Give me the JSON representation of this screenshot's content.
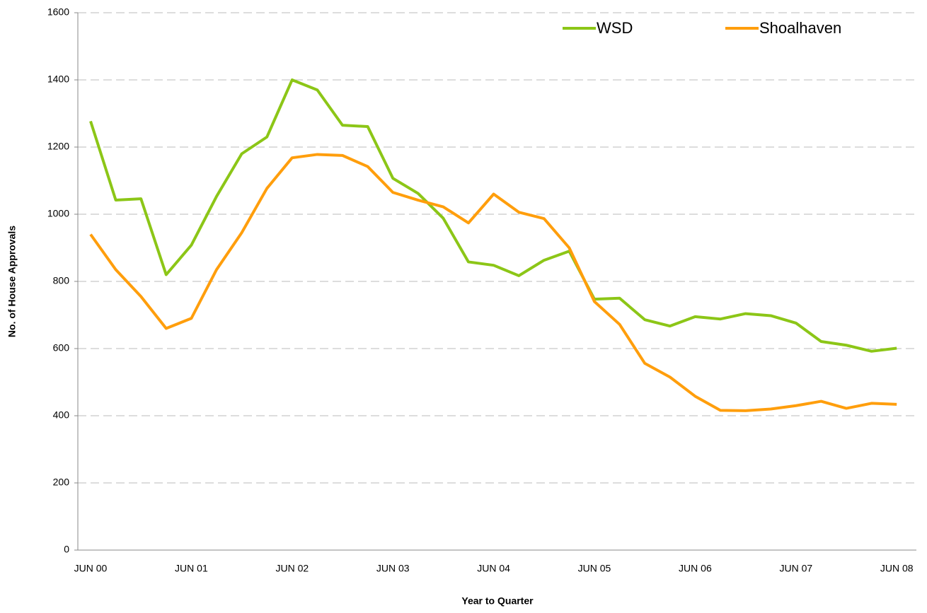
{
  "chart_data": {
    "type": "line",
    "x_label": "Year to Quarter",
    "y_label": "No. of House Approvals",
    "categories": [
      "JUN 00",
      null,
      null,
      null,
      "JUN 01",
      null,
      null,
      null,
      "JUN 02",
      null,
      null,
      null,
      "JUN 03",
      null,
      null,
      null,
      "JUN 04",
      null,
      null,
      null,
      "JUN 05",
      null,
      null,
      null,
      "JUN 06",
      null,
      null,
      null,
      "JUN 07",
      null,
      null,
      null,
      "JUN 08"
    ],
    "series": [
      {
        "name": "WSD",
        "color": "#8cc617",
        "values": [
          1277,
          1042,
          1046,
          820,
          908,
          1053,
          1180,
          1230,
          1400,
          1370,
          1265,
          1261,
          1107,
          1062,
          988,
          858,
          848,
          817,
          863,
          890,
          747,
          750,
          686,
          667,
          695,
          688,
          704,
          698,
          676,
          621,
          610,
          592,
          601
        ]
      },
      {
        "name": "Shoalhaven",
        "color": "#ff9e0c",
        "values": [
          940,
          835,
          755,
          660,
          690,
          835,
          945,
          1077,
          1168,
          1178,
          1175,
          1142,
          1065,
          1042,
          1022,
          974,
          1060,
          1006,
          987,
          900,
          740,
          672,
          556,
          515,
          458,
          416,
          415,
          420,
          430,
          443,
          422,
          437,
          434
        ]
      }
    ],
    "ylim": [
      0,
      1600
    ],
    "yticks": [
      0,
      200,
      400,
      600,
      800,
      1000,
      1200,
      1400,
      1600
    ],
    "grid": true,
    "legend": "top-right"
  }
}
